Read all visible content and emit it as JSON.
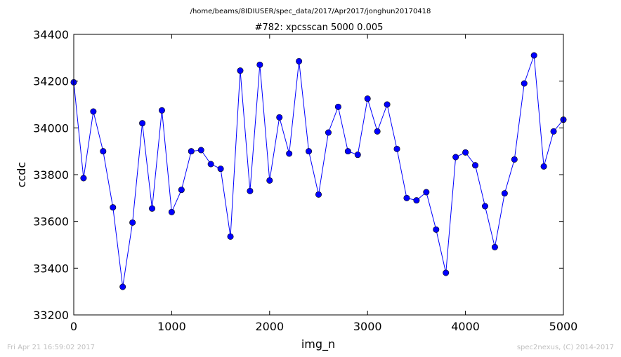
{
  "suptitle": "/home/beams/8IDIUSER/spec_data/2017/Apr2017/jonghun20170418",
  "footer": {
    "timestamp": "Fri Apr 21 16:59:02 2017",
    "credit": "spec2nexus, (C) 2014-2017"
  },
  "chart_data": {
    "type": "line",
    "title": "#782: xpcsscan 5000 0.005",
    "xlabel": "img_n",
    "ylabel": "ccdc",
    "xlim": [
      0,
      5000
    ],
    "ylim": [
      33200,
      34400
    ],
    "xticks": [
      0,
      1000,
      2000,
      3000,
      4000,
      5000
    ],
    "yticks": [
      33200,
      33400,
      33600,
      33800,
      34000,
      34200,
      34400
    ],
    "grid": false,
    "marker": "circle",
    "color": "#0000ff",
    "series": [
      {
        "x": [
          0,
          100,
          200,
          300,
          400,
          500,
          600,
          700,
          800,
          900,
          1000,
          1100,
          1200,
          1300,
          1400,
          1500,
          1600,
          1700,
          1800,
          1900,
          2000,
          2100,
          2200,
          2300,
          2400,
          2500,
          2600,
          2700,
          2800,
          2900,
          3000,
          3100,
          3200,
          3300,
          3400,
          3500,
          3600,
          3700,
          3800,
          3900,
          4000,
          4100,
          4200,
          4300,
          4400,
          4500,
          4600,
          4700,
          4800,
          4900,
          5000
        ],
        "values": [
          34195,
          33785,
          34070,
          33900,
          33660,
          33320,
          33595,
          34020,
          33655,
          34075,
          33640,
          33735,
          33900,
          33905,
          33845,
          33825,
          33535,
          34245,
          33730,
          34270,
          33775,
          34045,
          33890,
          34285,
          33900,
          33715,
          33980,
          34090,
          33900,
          33885,
          34125,
          33985,
          34100,
          33910,
          33700,
          33690,
          33725,
          33565,
          33380,
          33875,
          33895,
          33840,
          33665,
          33490,
          33720,
          33865,
          34190,
          34310,
          33835,
          33985,
          34035
        ]
      }
    ]
  }
}
